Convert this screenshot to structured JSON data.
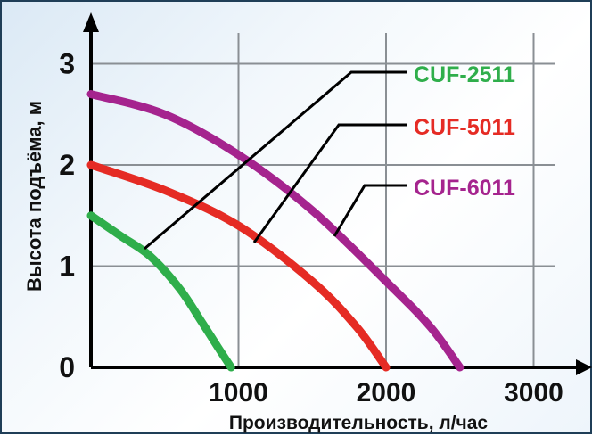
{
  "chart_data": {
    "type": "line",
    "xlabel": "Производительность, л/час",
    "ylabel": "Высота подъёма, м",
    "xlim": [
      0,
      3300
    ],
    "ylim": [
      0,
      3
    ],
    "x_ticks": [
      "1000",
      "2000",
      "3000"
    ],
    "y_ticks": [
      "0",
      "1",
      "2",
      "3"
    ],
    "grid": true,
    "series": [
      {
        "name": "CUF-2511",
        "color": "#2fae4b",
        "x": [
          0,
          200,
          400,
          600,
          750,
          860,
          950
        ],
        "y": [
          1.5,
          1.3,
          1.1,
          0.78,
          0.45,
          0.2,
          0
        ]
      },
      {
        "name": "CUF-5011",
        "color": "#e52b24",
        "x": [
          0,
          500,
          1000,
          1500,
          1800,
          2000
        ],
        "y": [
          2.0,
          1.75,
          1.4,
          0.85,
          0.4,
          0
        ]
      },
      {
        "name": "CUF-6011",
        "color": "#a5248e",
        "x": [
          0,
          500,
          1000,
          1500,
          2000,
          2300,
          2500
        ],
        "y": [
          2.7,
          2.5,
          2.1,
          1.55,
          0.85,
          0.4,
          0
        ]
      }
    ]
  }
}
